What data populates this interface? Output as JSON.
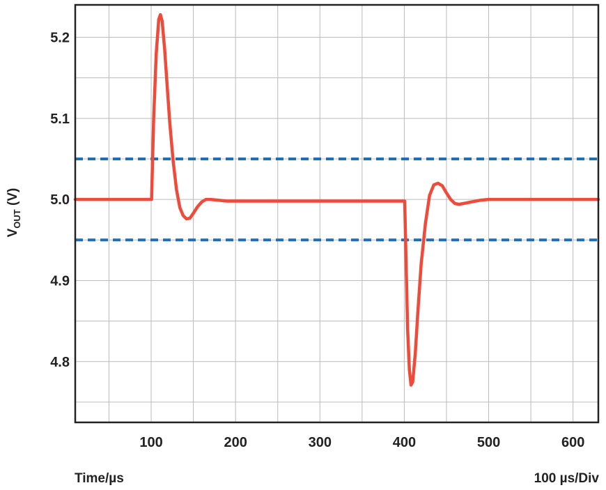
{
  "chart_data": {
    "type": "line",
    "xlabel": "Time/µs",
    "x_scale_note": "100 µs/Div",
    "ylabel": {
      "base": "V",
      "subscript": "OUT",
      "suffix": " (V)"
    },
    "xlim": [
      10,
      630
    ],
    "ylim": [
      4.725,
      5.24
    ],
    "x_ticks": [
      100,
      200,
      300,
      400,
      500,
      600
    ],
    "y_ticks": [
      4.8,
      4.9,
      5.0,
      5.1,
      5.2
    ],
    "grid": true,
    "legend": "none",
    "colors": {
      "response": "#ee4b3b",
      "limits": "#1f6fb2",
      "grid": "#bbbbbb",
      "frame": "#222222"
    },
    "limit_lines": [
      5.05,
      4.95
    ],
    "series": [
      {
        "x": [
          10,
          100,
          100.5,
          103,
          106,
          109,
          111,
          113,
          116,
          119,
          122,
          126,
          130,
          134,
          138,
          142,
          146,
          150,
          155,
          160,
          165,
          170,
          180,
          190,
          200,
          210,
          300,
          400,
          400.5,
          402,
          404,
          406,
          408,
          410,
          413,
          416,
          420,
          425,
          430,
          435,
          440,
          445,
          450,
          455,
          460,
          465,
          470,
          480,
          490,
          500,
          510,
          630
        ],
        "y": [
          5.0,
          5.0,
          5.0,
          5.1,
          5.18,
          5.222,
          5.228,
          5.22,
          5.185,
          5.14,
          5.095,
          5.048,
          5.012,
          4.99,
          4.98,
          4.976,
          4.977,
          4.983,
          4.991,
          4.997,
          5.0,
          5.0,
          4.999,
          4.998,
          4.998,
          4.998,
          4.998,
          4.998,
          4.998,
          4.93,
          4.84,
          4.79,
          4.771,
          4.775,
          4.81,
          4.86,
          4.92,
          4.97,
          5.005,
          5.018,
          5.02,
          5.017,
          5.008,
          5.0,
          4.995,
          4.994,
          4.995,
          4.997,
          4.999,
          5.0,
          5.0,
          5.0
        ]
      }
    ]
  }
}
